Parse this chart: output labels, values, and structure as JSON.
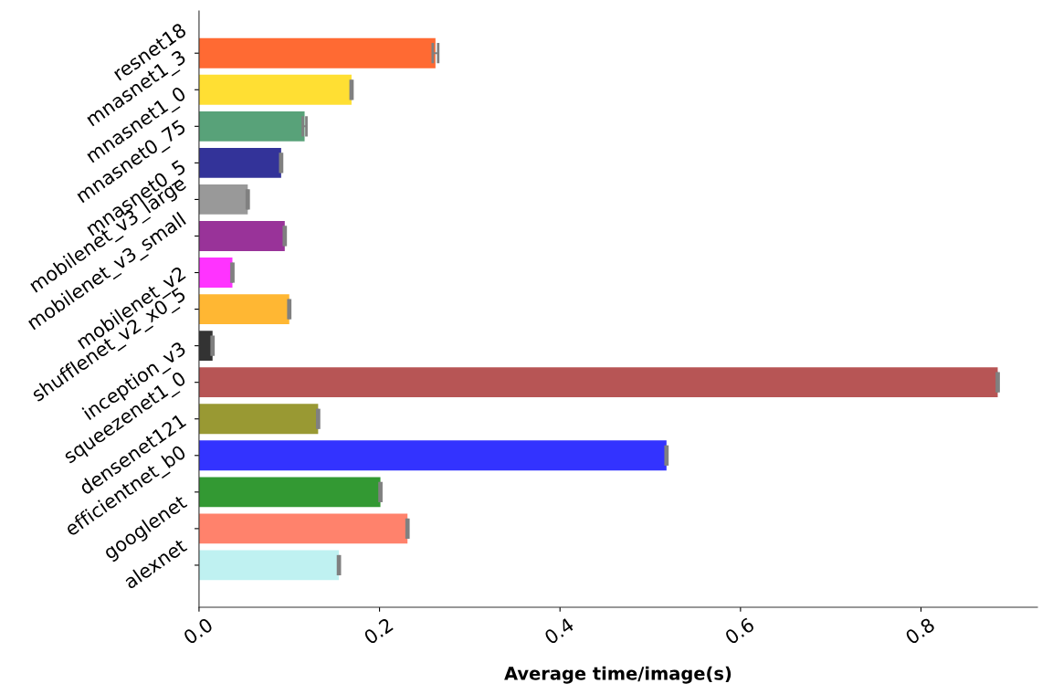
{
  "chart_data": {
    "type": "bar",
    "orientation": "horizontal",
    "xlabel": "Average time/image(s)",
    "categories": [
      "resnet18",
      "mnasnet1_3",
      "mnasnet1_0",
      "mnasnet0_75",
      "mnasnet0_5",
      "mobilenet_v3_large",
      "mobilenet_v3_small",
      "mobilenet_v2",
      "shufflenet_v2_x0_5",
      "inception_v3",
      "squeezenet1_0",
      "densenet121",
      "efficientnet_b0",
      "googlenet",
      "alexnet"
    ],
    "values": [
      0.262,
      0.169,
      0.117,
      0.091,
      0.054,
      0.095,
      0.037,
      0.1,
      0.015,
      0.885,
      0.132,
      0.518,
      0.201,
      0.231,
      0.155
    ],
    "errors": [
      0.003,
      0.001,
      0.002,
      0.001,
      0.001,
      0.001,
      0.001,
      0.001,
      0.001,
      0.001,
      0.001,
      0.001,
      0.001,
      0.001,
      0.001
    ],
    "colors": [
      "#ff6a33",
      "#ffdf33",
      "#58a279",
      "#333399",
      "#999999",
      "#993399",
      "#ff33ff",
      "#ffb733",
      "#333333",
      "#b75555",
      "#999933",
      "#3333ff",
      "#339933",
      "#ff826c",
      "#bff1f1"
    ],
    "xlim": [
      0,
      0.929
    ],
    "xticks": [
      {
        "value": 0,
        "label": "0.0"
      },
      0.2,
      0.4,
      0.6,
      0.8
    ],
    "grid": false
  }
}
